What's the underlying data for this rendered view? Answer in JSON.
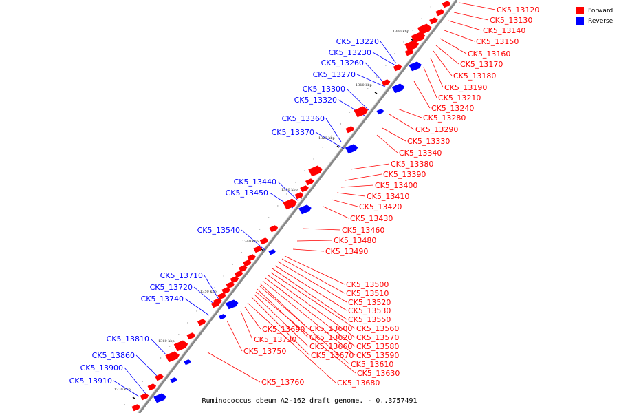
{
  "legend": {
    "forward": {
      "label": "Forward",
      "color": "#ff0000"
    },
    "reverse": {
      "label": "Reverse",
      "color": "#0000ff"
    }
  },
  "caption": "Ruminococcus obeum A2-162 draft genome. - 0..3757491",
  "ticks": [
    "1300 kbp",
    "1310 kbp",
    "1320 kbp",
    "1330 kbp",
    "1340 kbp",
    "1350 kbp",
    "1360 kbp",
    "1370 kbp"
  ],
  "genes": [
    {
      "name": "CK5_13120",
      "strand": "forward"
    },
    {
      "name": "CK5_13130",
      "strand": "forward"
    },
    {
      "name": "CK5_13140",
      "strand": "forward"
    },
    {
      "name": "CK5_13150",
      "strand": "forward"
    },
    {
      "name": "CK5_13160",
      "strand": "forward"
    },
    {
      "name": "CK5_13170",
      "strand": "forward"
    },
    {
      "name": "CK5_13180",
      "strand": "forward"
    },
    {
      "name": "CK5_13190",
      "strand": "forward"
    },
    {
      "name": "CK5_13210",
      "strand": "forward"
    },
    {
      "name": "CK5_13240",
      "strand": "forward"
    },
    {
      "name": "CK5_13280",
      "strand": "forward"
    },
    {
      "name": "CK5_13290",
      "strand": "forward"
    },
    {
      "name": "CK5_13330",
      "strand": "forward"
    },
    {
      "name": "CK5_13340",
      "strand": "forward"
    },
    {
      "name": "CK5_13380",
      "strand": "forward"
    },
    {
      "name": "CK5_13390",
      "strand": "forward"
    },
    {
      "name": "CK5_13400",
      "strand": "forward"
    },
    {
      "name": "CK5_13410",
      "strand": "forward"
    },
    {
      "name": "CK5_13420",
      "strand": "forward"
    },
    {
      "name": "CK5_13430",
      "strand": "forward"
    },
    {
      "name": "CK5_13460",
      "strand": "forward"
    },
    {
      "name": "CK5_13480",
      "strand": "forward"
    },
    {
      "name": "CK5_13490",
      "strand": "forward"
    },
    {
      "name": "CK5_13500",
      "strand": "forward"
    },
    {
      "name": "CK5_13510",
      "strand": "forward"
    },
    {
      "name": "CK5_13520",
      "strand": "forward"
    },
    {
      "name": "CK5_13530",
      "strand": "forward"
    },
    {
      "name": "CK5_13550",
      "strand": "forward"
    },
    {
      "name": "CK5_13560",
      "strand": "forward"
    },
    {
      "name": "CK5_13570",
      "strand": "forward"
    },
    {
      "name": "CK5_13580",
      "strand": "forward"
    },
    {
      "name": "CK5_13590",
      "strand": "forward"
    },
    {
      "name": "CK5_13600",
      "strand": "forward"
    },
    {
      "name": "CK5_13610",
      "strand": "forward"
    },
    {
      "name": "CK5_13620",
      "strand": "forward"
    },
    {
      "name": "CK5_13630",
      "strand": "forward"
    },
    {
      "name": "CK5_13660",
      "strand": "forward"
    },
    {
      "name": "CK5_13670",
      "strand": "forward"
    },
    {
      "name": "CK5_13680",
      "strand": "forward"
    },
    {
      "name": "CK5_13690",
      "strand": "forward"
    },
    {
      "name": "CK5_13730",
      "strand": "forward"
    },
    {
      "name": "CK5_13750",
      "strand": "forward"
    },
    {
      "name": "CK5_13760",
      "strand": "forward"
    },
    {
      "name": "CK5_13220",
      "strand": "reverse"
    },
    {
      "name": "CK5_13230",
      "strand": "reverse"
    },
    {
      "name": "CK5_13260",
      "strand": "reverse"
    },
    {
      "name": "CK5_13270",
      "strand": "reverse"
    },
    {
      "name": "CK5_13300",
      "strand": "reverse"
    },
    {
      "name": "CK5_13320",
      "strand": "reverse"
    },
    {
      "name": "CK5_13360",
      "strand": "reverse"
    },
    {
      "name": "CK5_13370",
      "strand": "reverse"
    },
    {
      "name": "CK5_13440",
      "strand": "reverse"
    },
    {
      "name": "CK5_13450",
      "strand": "reverse"
    },
    {
      "name": "CK5_13540",
      "strand": "reverse"
    },
    {
      "name": "CK5_13710",
      "strand": "reverse"
    },
    {
      "name": "CK5_13720",
      "strand": "reverse"
    },
    {
      "name": "CK5_13740",
      "strand": "reverse"
    },
    {
      "name": "CK5_13810",
      "strand": "reverse"
    },
    {
      "name": "CK5_13860",
      "strand": "reverse"
    },
    {
      "name": "CK5_13900",
      "strand": "reverse"
    },
    {
      "name": "CK5_13910",
      "strand": "reverse"
    }
  ]
}
